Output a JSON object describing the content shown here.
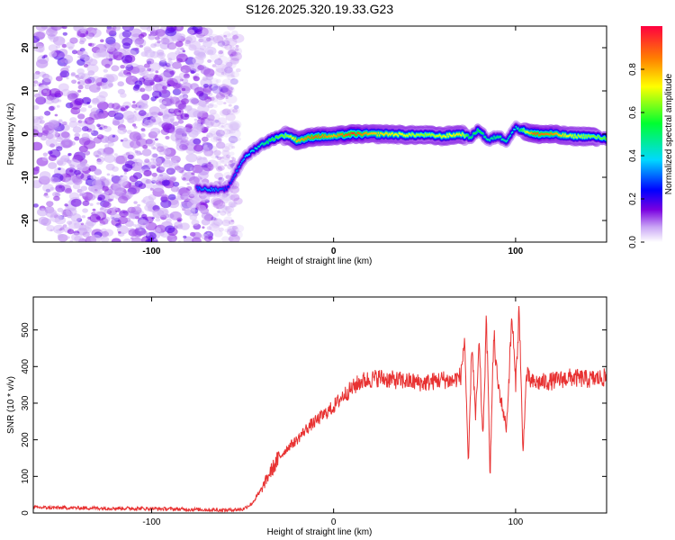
{
  "chart_data": [
    {
      "type": "heatmap",
      "title": "S126.2025.320.19.33.G23",
      "xlabel": "Height of straight line (km)",
      "ylabel": "Frequency (Hz)",
      "xlim": [
        -165,
        150
      ],
      "ylim": [
        -25,
        25
      ],
      "xticks": [
        -100,
        0,
        100
      ],
      "yticks": [
        -20,
        -10,
        0,
        10,
        20
      ],
      "colorbar": {
        "label": "Normalized spectral amplitude",
        "range": [
          0,
          1
        ],
        "ticks": [
          0.0,
          0.2,
          0.4,
          0.6,
          0.8
        ],
        "tick_labels": [
          "0.0",
          "0.2",
          "0.4",
          "0.6",
          "0.8"
        ]
      },
      "noise_region_km": [
        -165,
        -52
      ],
      "signal_track": {
        "x": [
          -75,
          -68,
          -62,
          -58,
          -55,
          -50,
          -45,
          -40,
          -35,
          -30,
          -25,
          -20,
          -10,
          0,
          10,
          20,
          30,
          40,
          50,
          60,
          70,
          75,
          80,
          85,
          90,
          95,
          100,
          110,
          120,
          130,
          140,
          150
        ],
        "y": [
          -12.5,
          -12.8,
          -13,
          -12.5,
          -10,
          -6,
          -4,
          -2.5,
          -1.5,
          -0.5,
          -0.3,
          -1.5,
          -0.5,
          -0.5,
          0,
          0,
          0,
          -0.2,
          -0.2,
          -0.5,
          0,
          -0.8,
          1,
          -1.5,
          -0.5,
          -1.5,
          1.5,
          0,
          0,
          -0.5,
          -0.5,
          -1
        ],
        "amplitude": [
          0.3,
          0.35,
          0.3,
          0.25,
          0.3,
          0.35,
          0.4,
          0.45,
          0.55,
          0.6,
          0.65,
          0.8,
          0.9,
          0.8,
          0.95,
          0.8,
          0.75,
          0.7,
          0.65,
          0.7,
          0.75,
          0.5,
          0.55,
          0.45,
          0.5,
          0.45,
          0.4,
          0.9,
          0.85,
          0.7,
          0.65,
          0.6
        ]
      }
    },
    {
      "type": "line",
      "xlabel": "Height of straight line (km)",
      "ylabel": "SNR (10 * v/v)",
      "xlim": [
        -165,
        150
      ],
      "ylim": [
        0,
        590
      ],
      "xticks": [
        -100,
        0,
        100
      ],
      "yticks": [
        0,
        100,
        200,
        300,
        400,
        500
      ],
      "color": "#e83232",
      "series": [
        {
          "name": "SNR",
          "x": [
            -165,
            -100,
            -60,
            -50,
            -45,
            -40,
            -35,
            -30,
            -25,
            -20,
            -15,
            -10,
            -5,
            0,
            5,
            10,
            15,
            20,
            25,
            30,
            40,
            50,
            60,
            65,
            70,
            72,
            74,
            76,
            78,
            80,
            82,
            84,
            86,
            88,
            90,
            95,
            98,
            100,
            102,
            104,
            106,
            108,
            110,
            120,
            130,
            140,
            150
          ],
          "y": [
            15,
            12,
            8,
            10,
            25,
            60,
            110,
            150,
            180,
            200,
            230,
            250,
            270,
            290,
            320,
            340,
            360,
            365,
            370,
            365,
            360,
            355,
            365,
            360,
            375,
            480,
            120,
            470,
            260,
            460,
            200,
            530,
            110,
            490,
            360,
            230,
            540,
            350,
            560,
            160,
            380,
            360,
            355,
            360,
            370,
            365,
            370
          ]
        }
      ]
    }
  ]
}
